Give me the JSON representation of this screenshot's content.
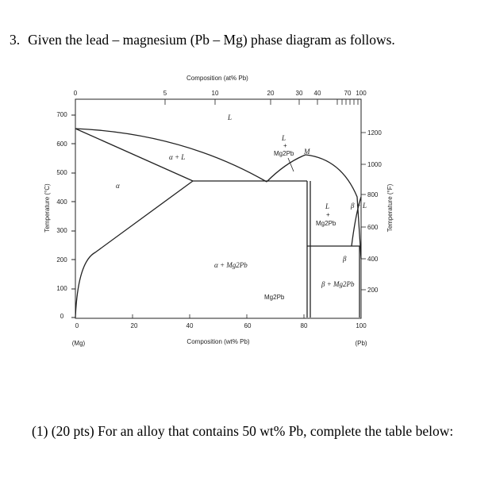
{
  "question": {
    "number": "3.",
    "text": "Given the lead – magnesium (Pb – Mg) phase diagram as follows."
  },
  "subquestion": {
    "text": "(1) (20 pts) For an alloy that contains 50 wt% Pb, complete the table below:"
  },
  "phase_diagram": {
    "top_axis_title": "Composition (at% Pb)",
    "top_ticks": [
      "0",
      "5",
      "10",
      "20",
      "30",
      "40",
      "70",
      "100"
    ],
    "bottom_axis_title": "Composition (wt% Pb)",
    "bottom_ticks": [
      "0",
      "20",
      "40",
      "60",
      "80",
      "100"
    ],
    "bottom_end_labels": [
      "(Mg)",
      "(Pb)"
    ],
    "left_axis_title": "Temperature (°C)",
    "left_ticks": [
      "0",
      "100",
      "200",
      "300",
      "400",
      "500",
      "600",
      "700"
    ],
    "right_axis_title": "Temperature (°F)",
    "right_ticks": [
      "200",
      "400",
      "600",
      "800",
      "1000",
      "1200"
    ],
    "region_labels": {
      "liquid": "L",
      "alpha": "α",
      "alpha_plus_liquid": "α + L",
      "liquid_plus_mg2pb_l": "L",
      "liquid_plus_mg2pb_plus": "+",
      "liquid_plus_mg2pb_compound": "Mg2Pb",
      "point_m": "M",
      "alpha_plus_mg2pb": "α + Mg2Pb",
      "mg2pb_line": "Mg2Pb",
      "right_l_plus_mg2pb_l": "L",
      "right_l_plus_mg2pb_plus": "+",
      "right_l_plus_mg2pb_compound": "Mg2Pb",
      "beta_plus_l": "β + L",
      "beta_small": "β",
      "beta_plus_mg2pb": "β + Mg2Pb"
    }
  }
}
